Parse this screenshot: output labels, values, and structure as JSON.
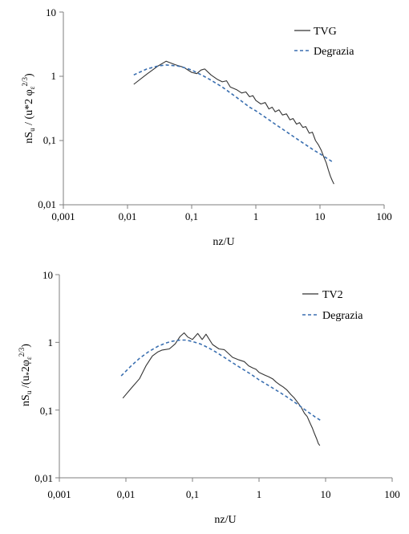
{
  "chart_data": [
    {
      "type": "line",
      "x_scale": "log",
      "y_scale": "log",
      "xlim": [
        0.001,
        100
      ],
      "ylim": [
        0.01,
        10
      ],
      "xticks": [
        "0,001",
        "0,01",
        "0,1",
        "1",
        "10",
        "100"
      ],
      "yticks": [
        "0,01",
        "0,1",
        "1",
        "10"
      ],
      "xlabel": "nz/U",
      "ylabel": "nS",
      "ylabel_sub": "u",
      "ylabel_tail": " / (u*2 φ",
      "ylabel_sub2": "ε",
      "ylabel_sup": "2/3",
      "ylabel_end": ")",
      "grid": false,
      "legend_position": "top-right",
      "colors": {
        "measured": "#333333",
        "model": "#3a6fb0"
      },
      "series": [
        {
          "name": "TVG",
          "style": "solid",
          "x": [
            0.0125,
            0.02,
            0.03,
            0.04,
            0.055,
            0.075,
            0.1,
            0.12,
            0.14,
            0.16,
            0.2,
            0.25,
            0.3,
            0.35,
            0.4,
            0.5,
            0.6,
            0.7,
            0.8,
            0.9,
            1.0,
            1.2,
            1.4,
            1.6,
            1.8,
            2.0,
            2.3,
            2.6,
            3.0,
            3.4,
            3.8,
            4.3,
            4.8,
            5.4,
            6.0,
            6.8,
            7.6,
            8.5,
            9.5,
            10.5,
            11.5,
            12.5,
            13.5,
            14.5,
            15.5,
            16.5
          ],
          "values": [
            0.75,
            1.08,
            1.45,
            1.72,
            1.52,
            1.38,
            1.15,
            1.1,
            1.25,
            1.3,
            1.05,
            0.9,
            0.82,
            0.85,
            0.68,
            0.62,
            0.55,
            0.57,
            0.48,
            0.5,
            0.42,
            0.37,
            0.39,
            0.31,
            0.33,
            0.28,
            0.3,
            0.25,
            0.26,
            0.21,
            0.22,
            0.18,
            0.19,
            0.16,
            0.165,
            0.13,
            0.135,
            0.1,
            0.085,
            0.07,
            0.055,
            0.045,
            0.035,
            0.028,
            0.024,
            0.021
          ]
        },
        {
          "name": "Degrazia",
          "style": "dashed",
          "x": [
            0.0125,
            0.02,
            0.03,
            0.04,
            0.06,
            0.08,
            0.1,
            0.15,
            0.2,
            0.3,
            0.5,
            0.8,
            1,
            1.5,
            2,
            3,
            5,
            8,
            10,
            16
          ],
          "values": [
            1.05,
            1.3,
            1.45,
            1.5,
            1.45,
            1.35,
            1.25,
            1.02,
            0.87,
            0.68,
            0.47,
            0.33,
            0.29,
            0.22,
            0.18,
            0.137,
            0.097,
            0.071,
            0.062,
            0.046
          ]
        }
      ]
    },
    {
      "type": "line",
      "x_scale": "log",
      "y_scale": "log",
      "xlim": [
        0.001,
        100
      ],
      "ylim": [
        0.01,
        10
      ],
      "xticks": [
        "0,001",
        "0,01",
        "0,1",
        "1",
        "10",
        "100"
      ],
      "yticks": [
        "0,01",
        "0,1",
        "1",
        "10"
      ],
      "xlabel": "nz/U",
      "ylabel": "nS",
      "ylabel_sub": "u",
      "ylabel_tail": " /(u",
      "ylabel_sub2": "*",
      "ylabel_tail2": "2φ",
      "ylabel_sub3": "ε",
      "ylabel_sup": "2/3",
      "ylabel_end": ")",
      "grid": false,
      "legend_position": "top-right",
      "colors": {
        "measured": "#333333",
        "model": "#3a6fb0"
      },
      "series": [
        {
          "name": "TV2",
          "style": "solid",
          "x": [
            0.009,
            0.012,
            0.016,
            0.02,
            0.025,
            0.03,
            0.035,
            0.045,
            0.055,
            0.065,
            0.075,
            0.085,
            0.1,
            0.12,
            0.14,
            0.16,
            0.2,
            0.25,
            0.3,
            0.35,
            0.4,
            0.5,
            0.6,
            0.7,
            0.8,
            0.9,
            1.0,
            1.2,
            1.4,
            1.6,
            1.8,
            2.0,
            2.3,
            2.6,
            3.0,
            3.4,
            3.8,
            4.3,
            4.8,
            5.3,
            5.8,
            6.3,
            6.8,
            7.3,
            7.8,
            8.2
          ],
          "values": [
            0.15,
            0.21,
            0.29,
            0.45,
            0.63,
            0.72,
            0.77,
            0.8,
            0.95,
            1.22,
            1.38,
            1.2,
            1.1,
            1.35,
            1.1,
            1.32,
            0.93,
            0.8,
            0.78,
            0.68,
            0.6,
            0.55,
            0.52,
            0.45,
            0.42,
            0.4,
            0.36,
            0.33,
            0.31,
            0.29,
            0.26,
            0.24,
            0.22,
            0.2,
            0.17,
            0.15,
            0.13,
            0.11,
            0.09,
            0.08,
            0.065,
            0.055,
            0.045,
            0.038,
            0.032,
            0.03
          ]
        },
        {
          "name": "Degrazia",
          "style": "dashed",
          "x": [
            0.0085,
            0.012,
            0.016,
            0.022,
            0.03,
            0.04,
            0.05,
            0.065,
            0.08,
            0.1,
            0.13,
            0.17,
            0.22,
            0.3,
            0.4,
            0.55,
            0.75,
            1.0,
            1.4,
            2.0,
            2.8,
            4.0,
            5.5,
            7.0,
            8.5
          ],
          "values": [
            0.32,
            0.45,
            0.58,
            0.73,
            0.87,
            0.98,
            1.04,
            1.08,
            1.08,
            1.03,
            0.95,
            0.84,
            0.73,
            0.6,
            0.5,
            0.41,
            0.34,
            0.28,
            0.23,
            0.185,
            0.15,
            0.117,
            0.093,
            0.079,
            0.07
          ]
        }
      ]
    }
  ]
}
